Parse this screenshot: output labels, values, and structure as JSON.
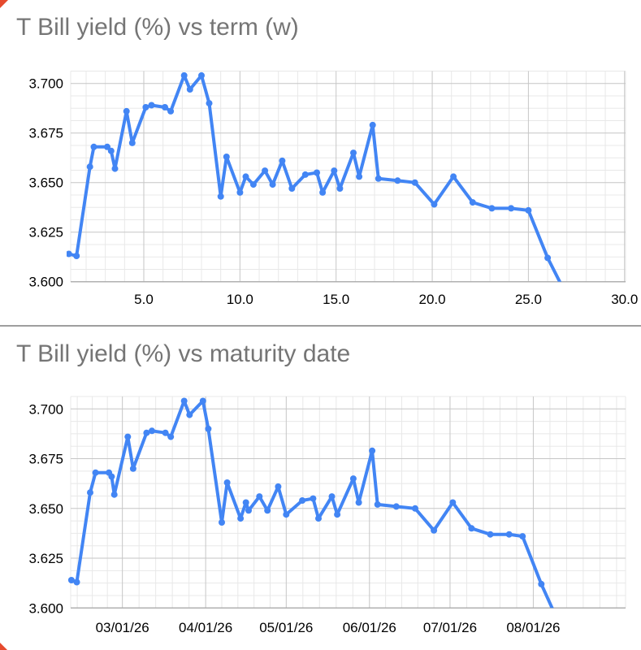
{
  "app": {
    "background_color": "#ffffff",
    "divider_color": "#9e9e9e",
    "corner_marker_color": "#e64a2e",
    "line_color": "#4285f4",
    "title_color": "#757575",
    "tick_label_color": "#000000",
    "minor_grid_color": "#e8e8e8",
    "major_grid_color": "#c6c6c6",
    "baseline_color": "#b0b0b0"
  },
  "charts": [
    {
      "title": "T Bill yield (%) vs term (w)",
      "x_axis": {
        "tick_labels": [
          "5.0",
          "10.0",
          "15.0",
          "20.0",
          "25.0",
          "30.0"
        ],
        "tick_values": [
          5,
          10,
          15,
          20,
          25,
          30
        ]
      },
      "y_axis": {
        "tick_labels": [
          "3.700",
          "3.675",
          "3.650",
          "3.625",
          "3.600"
        ],
        "tick_values": [
          3.7,
          3.675,
          3.65,
          3.625,
          3.6
        ]
      }
    },
    {
      "title": "T Bill yield (%) vs maturity date",
      "x_axis": {
        "tick_labels": [
          "03/01/26",
          "04/01/26",
          "05/01/26",
          "06/01/26",
          "07/01/26",
          "08/01/26"
        ],
        "tick_values": [
          28,
          59,
          89,
          120,
          150,
          181
        ]
      },
      "y_axis": {
        "tick_labels": [
          "3.700",
          "3.675",
          "3.650",
          "3.625",
          "3.600"
        ],
        "tick_values": [
          3.7,
          3.675,
          3.65,
          3.625,
          3.6
        ]
      }
    }
  ],
  "chart_data": [
    {
      "type": "line",
      "title": "T Bill yield (%) vs term (w)",
      "xlabel": "term (w)",
      "ylabel": "T Bill yield (%)",
      "legend": false,
      "grid": true,
      "marker": "circle",
      "line_color": "#4285f4",
      "xlim": [
        1.1,
        30.5
      ],
      "ylim": [
        3.6,
        3.70625
      ],
      "x": [
        1.1,
        1.5,
        2.2,
        2.4,
        3.1,
        3.3,
        3.5,
        4.1,
        4.4,
        5.1,
        5.4,
        6.1,
        6.4,
        7.1,
        7.4,
        8.0,
        8.4,
        9.0,
        9.3,
        10.0,
        10.3,
        10.7,
        11.3,
        11.7,
        12.2,
        12.7,
        13.4,
        14.0,
        14.3,
        14.9,
        15.2,
        15.9,
        16.2,
        16.9,
        17.2,
        18.2,
        19.1,
        20.1,
        21.1,
        22.1,
        23.1,
        24.1,
        25.0,
        26.0,
        27.1
      ],
      "y": [
        3.614,
        3.613,
        3.658,
        3.668,
        3.668,
        3.666,
        3.657,
        3.686,
        3.67,
        3.688,
        3.689,
        3.688,
        3.686,
        3.704,
        3.697,
        3.704,
        3.69,
        3.643,
        3.663,
        3.645,
        3.653,
        3.649,
        3.656,
        3.649,
        3.661,
        3.647,
        3.654,
        3.655,
        3.645,
        3.656,
        3.647,
        3.665,
        3.653,
        3.679,
        3.652,
        3.651,
        3.65,
        3.639,
        3.653,
        3.64,
        3.637,
        3.637,
        3.636,
        3.612,
        3.591
      ]
    },
    {
      "type": "line",
      "title": "T Bill yield (%) vs maturity date",
      "xlabel": "maturity date",
      "ylabel": "T Bill yield (%)",
      "legend": false,
      "grid": true,
      "marker": "circle",
      "line_color": "#4285f4",
      "ylim": [
        3.6,
        3.70625
      ],
      "x": [
        "02/10/26",
        "02/12/26",
        "02/17/26",
        "02/19/26",
        "02/24/26",
        "02/25/26",
        "02/26/26",
        "03/03/26",
        "03/05/26",
        "03/10/26",
        "03/12/26",
        "03/17/26",
        "03/19/26",
        "03/24/26",
        "03/26/26",
        "03/31/26",
        "04/02/26",
        "04/07/26",
        "04/09/26",
        "04/14/26",
        "04/16/26",
        "04/17/26",
        "04/21/26",
        "04/24/26",
        "04/28/26",
        "05/01/26",
        "05/07/26",
        "05/11/26",
        "05/13/26",
        "05/18/26",
        "05/20/26",
        "05/26/26",
        "05/28/26",
        "06/02/26",
        "06/04/26",
        "06/11/26",
        "06/18/26",
        "06/25/26",
        "07/02/26",
        "07/09/26",
        "07/16/26",
        "07/23/26",
        "07/28/26",
        "08/04/26",
        "08/11/26"
      ],
      "y": [
        3.614,
        3.613,
        3.658,
        3.668,
        3.668,
        3.666,
        3.657,
        3.686,
        3.67,
        3.688,
        3.689,
        3.688,
        3.686,
        3.704,
        3.697,
        3.704,
        3.69,
        3.643,
        3.663,
        3.645,
        3.653,
        3.649,
        3.656,
        3.649,
        3.661,
        3.647,
        3.654,
        3.655,
        3.645,
        3.656,
        3.647,
        3.665,
        3.653,
        3.679,
        3.652,
        3.651,
        3.65,
        3.639,
        3.653,
        3.64,
        3.637,
        3.637,
        3.636,
        3.612,
        3.591
      ]
    }
  ]
}
